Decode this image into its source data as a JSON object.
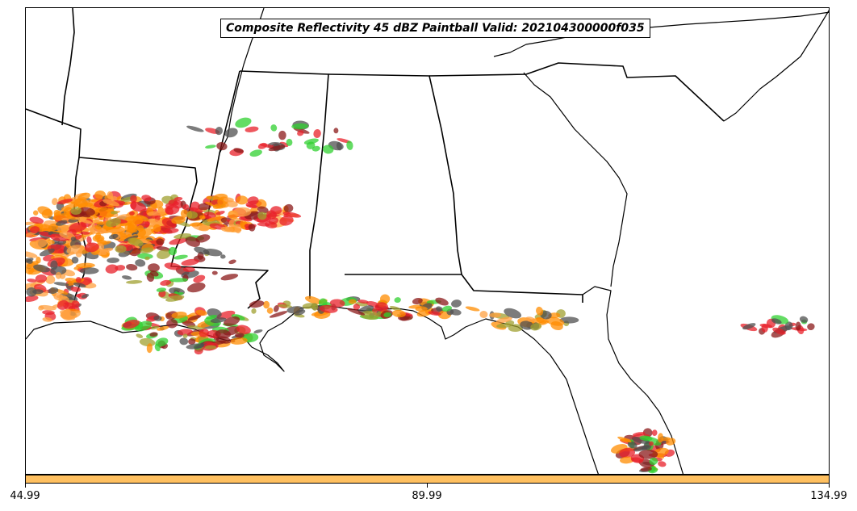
{
  "title": "Composite Reflectivity 45 dBZ Paintball Valid: 202104300000f035",
  "colorbar": {
    "color": "#ffc060",
    "ticks": [
      "44.99",
      "89.99",
      "134.99"
    ]
  },
  "palette": {
    "orange": "#ff8c00",
    "light_orange": "#ffa040",
    "red": "#e8202a",
    "green": "#30d030",
    "olive": "#a0a030",
    "dark_gray": "#505050",
    "dark_red": "#8b1a1a"
  }
}
